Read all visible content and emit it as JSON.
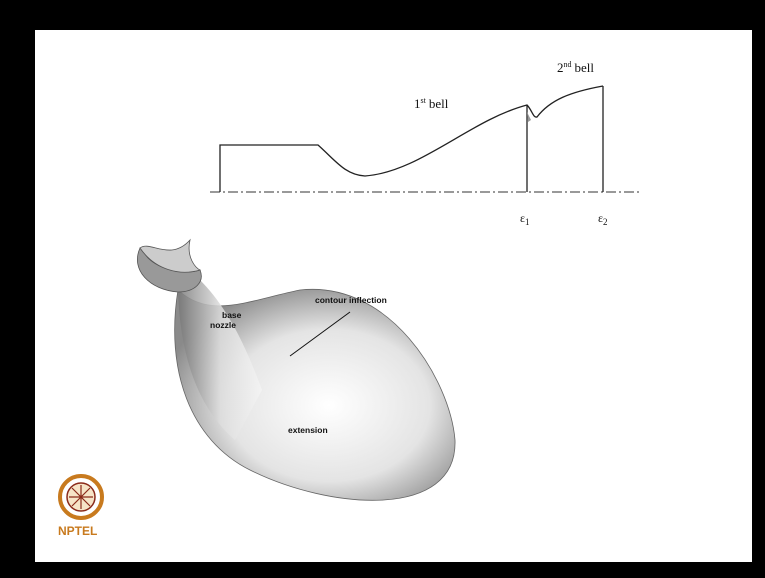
{
  "contour": {
    "first_bell": {
      "num": "1",
      "sup": "st",
      "word": "bell"
    },
    "second_bell": {
      "num": "2",
      "sup": "nd",
      "word": "bell"
    },
    "eps1": {
      "symbol": "ε",
      "sub": "1"
    },
    "eps2": {
      "symbol": "ε",
      "sub": "2"
    }
  },
  "nozzle": {
    "inflection": "contour inflection",
    "base_line1": "base",
    "base_line2": "nozzle",
    "extension": "extension"
  },
  "logo": {
    "text": "NPTEL"
  }
}
